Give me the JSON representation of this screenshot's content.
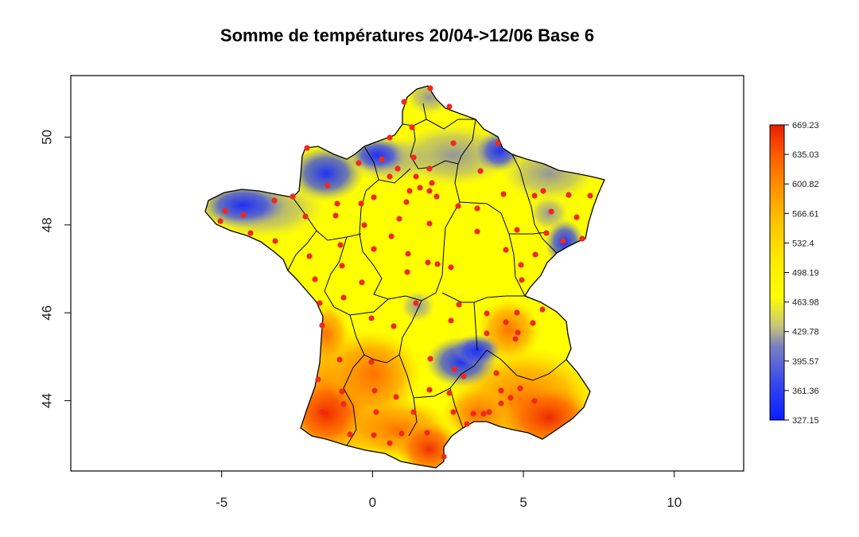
{
  "title": "Somme de températures 20/04->12/06 Base 6",
  "x_axis": {
    "ticks": [
      -5,
      0,
      5,
      10
    ],
    "labels": [
      "-5",
      "0",
      "5",
      "10"
    ],
    "range": [
      -10,
      12.3
    ]
  },
  "y_axis": {
    "ticks": [
      44,
      46,
      48,
      50
    ],
    "labels": [
      "44",
      "46",
      "48",
      "50"
    ],
    "range": [
      42.4,
      51.4
    ]
  },
  "legend": {
    "labels": [
      "669.23",
      "635.03",
      "600.82",
      "566.61",
      "532.4",
      "498.19",
      "463.98",
      "429.78",
      "395.57",
      "361.36",
      "327.15"
    ],
    "min": 327.15,
    "max": 669.23,
    "colors": [
      "#0a1eff",
      "#4a5ce0",
      "#9ea0a8",
      "#f0ec10",
      "#ffff00",
      "#ffd400",
      "#ffa000",
      "#ff6a00",
      "#f03a00",
      "#e81800"
    ]
  },
  "colors": {
    "high": "#e8200a",
    "mid": "#ffff00",
    "low": "#0a1eff",
    "station": "#f0281e"
  }
}
